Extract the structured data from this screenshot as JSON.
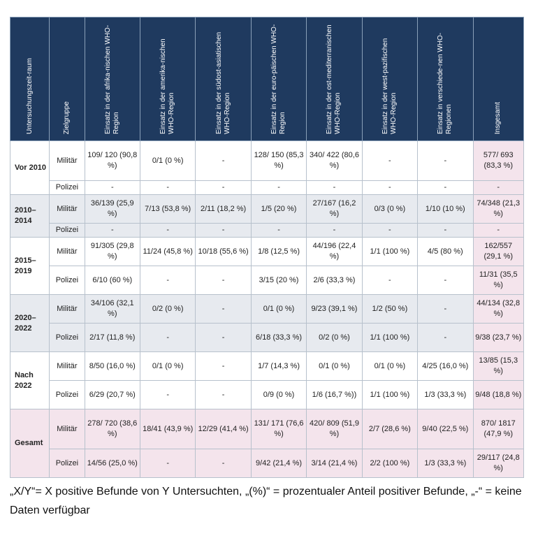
{
  "headers": [
    "Untersuchungszeit-raum",
    "Zielgruppe",
    "Einsatz in der afrika-nischen WHO-Region",
    "Einsatz in der amerika-nischen WHO-Region",
    "Einsatz in der südost-asiatischen WHO-Region",
    "Einsatz in der euro-päischen WHO-Region",
    "Einsatz in der ost-mediterranischen WHO-Region",
    "Einsatz in der west-pazifischen WHO-Region",
    "Einsatz in verschiede-nen WHO-Regionen",
    "Insgesamt"
  ],
  "periods": [
    {
      "label": "Vor 2010",
      "rows": [
        {
          "group": "Militär",
          "cells": [
            "109/ 120 (90,8 %)",
            "0/1 (0 %)",
            "-",
            "128/ 150 (85,3 %)",
            "340/ 422 (80,6 %)",
            "-",
            "-",
            "577/ 693 (83,3 %)"
          ]
        },
        {
          "group": "Polizei",
          "cells": [
            "-",
            "-",
            "-",
            "-",
            "-",
            "-",
            "-",
            "-"
          ]
        }
      ]
    },
    {
      "label": "2010– 2014",
      "rows": [
        {
          "group": "Militär",
          "cells": [
            "36/139 (25,9 %)",
            "7/13 (53,8 %)",
            "2/11 (18,2 %)",
            "1/5 (20 %)",
            "27/167 (16,2 %)",
            "0/3 (0 %)",
            "1/10 (10 %)",
            "74/348 (21,3 %)"
          ]
        },
        {
          "group": "Polizei",
          "cells": [
            "-",
            "-",
            "-",
            "-",
            "-",
            "-",
            "-",
            "-"
          ]
        }
      ]
    },
    {
      "label": "2015– 2019",
      "rows": [
        {
          "group": "Militär",
          "cells": [
            "91/305 (29,8 %)",
            "11/24 (45,8 %)",
            "10/18 (55,6 %)",
            "1/8 (12,5 %)",
            "44/196 (22,4 %)",
            "1/1 (100 %)",
            "4/5 (80 %)",
            "162/557 (29,1 %)"
          ]
        },
        {
          "group": "Polizei",
          "cells": [
            "6/10 (60 %)",
            "-",
            "-",
            "3/15 (20 %)",
            "2/6 (33,3 %)",
            "-",
            "-",
            "11/31 (35,5 %)"
          ]
        }
      ]
    },
    {
      "label": "2020– 2022",
      "rows": [
        {
          "group": "Militär",
          "cells": [
            "34/106 (32,1 %)",
            "0/2 (0 %)",
            "-",
            "0/1 (0 %)",
            "9/23 (39,1 %)",
            "1/2 (50 %)",
            "-",
            "44/134 (32,8 %)"
          ]
        },
        {
          "group": "Polizei",
          "cells": [
            "2/17 (11,8 %)",
            "-",
            "-",
            "6/18 (33,3 %)",
            "0/2 (0 %)",
            "1/1 (100 %)",
            "-",
            "9/38 (23,7 %)"
          ]
        }
      ]
    },
    {
      "label": "Nach 2022",
      "rows": [
        {
          "group": "Militär",
          "cells": [
            "8/50 (16,0 %)",
            "0/1 (0 %)",
            "-",
            "1/7 (14,3 %)",
            "0/1 (0 %)",
            "0/1 (0 %)",
            "4/25 (16,0 %)",
            "13/85 (15,3 %)"
          ]
        },
        {
          "group": "Polizei",
          "cells": [
            "6/29 (20,7 %)",
            "-",
            "-",
            "0/9 (0 %)",
            "1/6 (16,7 %))",
            "1/1 (100 %)",
            "1/3 (33,3 %)",
            "9/48 (18,8 %)"
          ]
        }
      ]
    },
    {
      "label": "Gesamt",
      "rows": [
        {
          "group": "Militär",
          "cells": [
            "278/ 720 (38,6 %)",
            "18/41 (43,9 %)",
            "12/29 (41,4 %)",
            "131/ 171 (76,6 %)",
            "420/ 809 (51,9 %)",
            "2/7 (28,6 %)",
            "9/40 (22,5 %)",
            "870/ 1817 (47,9 %)"
          ]
        },
        {
          "group": "Polizei",
          "cells": [
            "14/56 (25,0 %)",
            "-",
            "-",
            "9/42 (21,4 %)",
            "3/14 (21,4 %)",
            "2/2 (100 %)",
            "1/3 (33,3 %)",
            "29/117 (24,8 %)"
          ]
        }
      ]
    }
  ],
  "footnote": "„X/Y“= X positive Befunde von Y Untersuchten, „(%)“ = prozentualer Anteil positiver Befunde, „-“ = keine Daten verfügbar"
}
